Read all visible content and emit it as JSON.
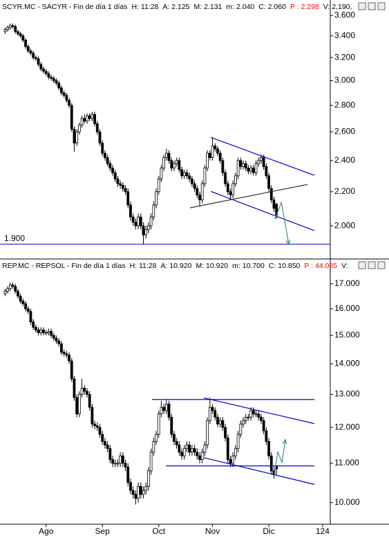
{
  "chart_data": [
    {
      "type": "candlestick",
      "title": "SCYR.MC - SACYR - Fin de día 1 días",
      "stats": [
        {
          "text": "H: 11:28"
        },
        {
          "text": "A: 2.125"
        },
        {
          "text": "M: 2.131"
        },
        {
          "text": "m: 2.040"
        },
        {
          "text": "C: 2.060"
        },
        {
          "text": "P : 2.298",
          "color": "#ff0000"
        },
        {
          "text": "V: 2,190,"
        }
      ],
      "log_scale": true,
      "up_color": "#ffffff",
      "down_color": "#000000",
      "xlim": [
        -2,
        127
      ],
      "ylim": [
        1.83,
        3.63
      ],
      "yticks": [
        {
          "value": 3.6,
          "label": "3.600"
        },
        {
          "value": 3.4,
          "label": "3.400"
        },
        {
          "value": 3.2,
          "label": "3.200"
        },
        {
          "value": 3.0,
          "label": "3.000"
        },
        {
          "value": 2.8,
          "label": "2.800"
        },
        {
          "value": 2.6,
          "label": "2.600"
        },
        {
          "value": 2.4,
          "label": "2.400"
        },
        {
          "value": 2.2,
          "label": "2.200"
        },
        {
          "value": 2.0,
          "label": "2.000"
        }
      ],
      "open": [
        3.44,
        3.46,
        3.48,
        3.5,
        3.49,
        3.44,
        3.42,
        3.4,
        3.36,
        3.3,
        3.26,
        3.24,
        3.2,
        3.19,
        3.14,
        3.1,
        3.08,
        3.06,
        3.03,
        3.02,
        3.0,
        2.98,
        2.94,
        2.9,
        2.88,
        2.84,
        2.8,
        2.62,
        2.52,
        2.6,
        2.65,
        2.7,
        2.68,
        2.72,
        2.7,
        2.73,
        2.66,
        2.6,
        2.52,
        2.45,
        2.42,
        2.38,
        2.35,
        2.32,
        2.28,
        2.25,
        2.24,
        2.22,
        2.2,
        2.12,
        2.05,
        2.02,
        2.0,
        2.05,
        2.0,
        1.95,
        1.98,
        2.0,
        2.05,
        2.12,
        2.2,
        2.28,
        2.35,
        2.42,
        2.45,
        2.4,
        2.35,
        2.38,
        2.4,
        2.34,
        2.3,
        2.32,
        2.3,
        2.28,
        2.25,
        2.22,
        2.18,
        2.15,
        2.25,
        2.35,
        2.45,
        2.42,
        2.5,
        2.48,
        2.45,
        2.4,
        2.32,
        2.25,
        2.2,
        2.18,
        2.25,
        2.3,
        2.4,
        2.36,
        2.38,
        2.35,
        2.33,
        2.35,
        2.32,
        2.38,
        2.4,
        2.42,
        2.36,
        2.3,
        2.22,
        2.15,
        2.125
      ],
      "high": [
        3.48,
        3.5,
        3.52,
        3.52,
        3.51,
        3.46,
        3.44,
        3.42,
        3.38,
        3.32,
        3.28,
        3.26,
        3.22,
        3.21,
        3.16,
        3.12,
        3.1,
        3.08,
        3.05,
        3.04,
        3.02,
        3.0,
        2.96,
        2.92,
        2.9,
        2.86,
        2.82,
        2.64,
        2.62,
        2.67,
        2.72,
        2.73,
        2.74,
        2.74,
        2.75,
        2.75,
        2.68,
        2.62,
        2.54,
        2.47,
        2.44,
        2.4,
        2.37,
        2.34,
        2.3,
        2.27,
        2.26,
        2.24,
        2.22,
        2.14,
        2.07,
        2.04,
        2.07,
        2.07,
        2.02,
        2.0,
        2.02,
        2.07,
        2.14,
        2.22,
        2.3,
        2.37,
        2.44,
        2.48,
        2.47,
        2.42,
        2.4,
        2.42,
        2.42,
        2.36,
        2.34,
        2.34,
        2.32,
        2.3,
        2.27,
        2.24,
        2.2,
        2.27,
        2.37,
        2.47,
        2.47,
        2.56,
        2.52,
        2.5,
        2.47,
        2.42,
        2.34,
        2.27,
        2.22,
        2.27,
        2.32,
        2.42,
        2.42,
        2.4,
        2.4,
        2.37,
        2.37,
        2.37,
        2.4,
        2.42,
        2.44,
        2.44,
        2.38,
        2.32,
        2.24,
        2.17,
        2.131
      ],
      "low": [
        3.42,
        3.44,
        3.46,
        3.47,
        3.42,
        3.4,
        3.38,
        3.34,
        3.28,
        3.24,
        3.22,
        3.18,
        3.17,
        3.12,
        3.08,
        3.06,
        3.04,
        3.01,
        3.0,
        2.98,
        2.96,
        2.92,
        2.88,
        2.86,
        2.82,
        2.78,
        2.6,
        2.46,
        2.5,
        2.58,
        2.63,
        2.66,
        2.66,
        2.68,
        2.68,
        2.64,
        2.58,
        2.5,
        2.43,
        2.4,
        2.36,
        2.33,
        2.3,
        2.26,
        2.23,
        2.22,
        2.2,
        2.18,
        2.1,
        2.03,
        2.0,
        1.98,
        1.98,
        1.98,
        1.9,
        1.93,
        1.96,
        1.98,
        2.03,
        2.1,
        2.18,
        2.26,
        2.33,
        2.4,
        2.38,
        2.33,
        2.33,
        2.36,
        2.32,
        2.28,
        2.28,
        2.28,
        2.26,
        2.23,
        2.2,
        2.16,
        2.11,
        2.13,
        2.23,
        2.33,
        2.4,
        2.4,
        2.46,
        2.43,
        2.38,
        2.3,
        2.23,
        2.18,
        2.15,
        2.16,
        2.23,
        2.28,
        2.34,
        2.34,
        2.33,
        2.31,
        2.31,
        2.3,
        2.3,
        2.36,
        2.38,
        2.34,
        2.28,
        2.2,
        2.13,
        2.08,
        2.04
      ],
      "close": [
        3.46,
        3.48,
        3.5,
        3.49,
        3.44,
        3.42,
        3.4,
        3.36,
        3.3,
        3.26,
        3.24,
        3.2,
        3.19,
        3.14,
        3.1,
        3.08,
        3.06,
        3.03,
        3.02,
        3.0,
        2.98,
        2.94,
        2.9,
        2.88,
        2.84,
        2.8,
        2.62,
        2.52,
        2.6,
        2.65,
        2.7,
        2.68,
        2.72,
        2.7,
        2.73,
        2.66,
        2.6,
        2.52,
        2.45,
        2.42,
        2.38,
        2.35,
        2.32,
        2.28,
        2.25,
        2.24,
        2.22,
        2.2,
        2.12,
        2.05,
        2.02,
        2.0,
        2.05,
        2.0,
        1.95,
        1.98,
        2.0,
        2.05,
        2.12,
        2.2,
        2.28,
        2.35,
        2.42,
        2.45,
        2.4,
        2.35,
        2.38,
        2.4,
        2.34,
        2.3,
        2.32,
        2.3,
        2.28,
        2.25,
        2.22,
        2.18,
        2.15,
        2.25,
        2.35,
        2.45,
        2.42,
        2.5,
        2.48,
        2.45,
        2.4,
        2.32,
        2.25,
        2.2,
        2.18,
        2.25,
        2.3,
        2.4,
        2.36,
        2.38,
        2.35,
        2.33,
        2.35,
        2.32,
        2.38,
        2.4,
        2.42,
        2.36,
        2.3,
        2.22,
        2.15,
        2.1,
        2.06
      ],
      "hlines": [
        {
          "value": 1.9,
          "label": "1.900",
          "color": "#0000cc"
        }
      ],
      "lines": [
        {
          "color": "#0000cc",
          "x": [
            80.3,
            120.8
          ],
          "y": [
            2.561,
            2.303
          ]
        },
        {
          "color": "#0000cc",
          "x": [
            80.3,
            120.8
          ],
          "y": [
            2.202,
            1.973
          ]
        },
        {
          "color": "#333333",
          "x": [
            72.2,
            118.1
          ],
          "y": [
            2.103,
            2.245
          ]
        },
        {
          "color": "#4a8a8a",
          "x": [
            105.4,
            107.9,
            110.8
          ],
          "y": [
            2.039,
            2.135,
            1.898
          ],
          "arrow": true
        }
      ]
    },
    {
      "type": "candlestick",
      "title": "REP.MC - REPSOL - Fin de día 1 días",
      "stats": [
        {
          "text": "H: 11:28"
        },
        {
          "text": "A: 10.920"
        },
        {
          "text": "M: 10.920"
        },
        {
          "text": "m: 10.700"
        },
        {
          "text": "C: 10.850"
        },
        {
          "text": "P : 44.085",
          "color": "#ff0000"
        },
        {
          "text": "V:"
        }
      ],
      "log_scale": true,
      "up_color": "#ffffff",
      "down_color": "#000000",
      "xlim": [
        -2,
        127
      ],
      "ylim": [
        9.52,
        17.4
      ],
      "xticks": [
        {
          "value": 16,
          "label": "Ago"
        },
        {
          "value": 38,
          "label": "Sep"
        },
        {
          "value": 60,
          "label": "Oct"
        },
        {
          "value": 81,
          "label": "Nov"
        },
        {
          "value": 103,
          "label": "Dic"
        },
        124
      ],
      "yticks": [
        {
          "value": 17,
          "label": "17.000"
        },
        {
          "value": 16,
          "label": "16.000"
        },
        {
          "value": 15,
          "label": "15.000"
        },
        {
          "value": 14,
          "label": "14.000"
        },
        {
          "value": 13,
          "label": "13.000"
        },
        {
          "value": 12,
          "label": "12.000"
        },
        {
          "value": 11,
          "label": "11.000"
        },
        {
          "value": 10,
          "label": "10.000"
        }
      ],
      "open": [
        16.6,
        16.7,
        16.8,
        16.95,
        16.9,
        16.7,
        16.5,
        16.3,
        16.2,
        16.0,
        15.9,
        15.5,
        15.3,
        15.2,
        15.1,
        15.2,
        15.1,
        15.1,
        15.15,
        15.0,
        14.9,
        14.8,
        14.7,
        14.4,
        14.35,
        14.3,
        14.1,
        13.5,
        12.9,
        12.4,
        13.0,
        13.2,
        13.1,
        13.0,
        12.6,
        12.1,
        12.05,
        12.0,
        11.8,
        11.6,
        11.5,
        11.4,
        11.1,
        11.0,
        11.0,
        11.0,
        11.2,
        11.0,
        10.9,
        10.5,
        10.3,
        10.2,
        10.1,
        10.4,
        10.2,
        10.3,
        10.4,
        10.8,
        11.3,
        11.6,
        11.8,
        12.4,
        12.6,
        12.5,
        12.7,
        12.3,
        11.8,
        11.6,
        11.5,
        11.3,
        11.2,
        11.4,
        11.5,
        11.3,
        11.4,
        11.3,
        11.2,
        11.1,
        11.3,
        11.5,
        12.2,
        12.6,
        12.5,
        12.3,
        12.1,
        12.2,
        12.0,
        11.7,
        11.1,
        11.0,
        11.2,
        11.4,
        11.8,
        12.1,
        12.2,
        12.3,
        12.3,
        12.5,
        12.4,
        12.4,
        12.3,
        12.2,
        11.9,
        11.6,
        11.2,
        10.8,
        10.92
      ],
      "high": [
        16.8,
        16.9,
        17.05,
        17.05,
        17.0,
        16.8,
        16.6,
        16.4,
        16.3,
        16.1,
        16.0,
        15.6,
        15.4,
        15.3,
        15.3,
        15.3,
        15.2,
        15.25,
        15.25,
        15.1,
        15.0,
        14.9,
        14.8,
        14.5,
        14.45,
        14.4,
        14.2,
        13.6,
        13.0,
        13.1,
        13.5,
        13.3,
        13.2,
        13.1,
        12.7,
        12.2,
        12.15,
        12.1,
        11.9,
        11.7,
        11.6,
        11.5,
        11.2,
        11.1,
        11.1,
        11.3,
        11.3,
        11.1,
        11.0,
        10.6,
        10.4,
        10.3,
        10.5,
        10.5,
        10.4,
        10.5,
        10.9,
        11.4,
        11.7,
        11.9,
        12.5,
        12.8,
        12.7,
        12.85,
        12.8,
        12.4,
        11.9,
        11.7,
        11.6,
        11.4,
        11.5,
        11.6,
        11.6,
        11.5,
        11.5,
        11.4,
        11.3,
        11.4,
        11.6,
        12.3,
        12.9,
        12.7,
        12.6,
        12.4,
        12.3,
        12.3,
        12.1,
        11.8,
        11.2,
        11.3,
        11.5,
        11.9,
        12.2,
        12.3,
        12.4,
        12.4,
        12.6,
        12.6,
        12.5,
        12.5,
        12.4,
        12.3,
        12.0,
        11.7,
        11.3,
        10.9,
        10.92
      ],
      "low": [
        16.5,
        16.6,
        16.7,
        16.8,
        16.6,
        16.4,
        16.2,
        16.1,
        15.9,
        15.8,
        15.4,
        15.2,
        15.1,
        15.0,
        15.0,
        15.0,
        15.0,
        15.0,
        14.9,
        14.8,
        14.7,
        14.6,
        14.3,
        14.25,
        14.2,
        14.0,
        13.4,
        12.8,
        12.3,
        12.3,
        12.9,
        13.0,
        12.9,
        12.5,
        12.0,
        11.95,
        11.9,
        11.7,
        11.5,
        11.4,
        11.3,
        11.0,
        10.9,
        10.9,
        10.9,
        10.9,
        10.9,
        10.8,
        10.4,
        10.2,
        10.1,
        9.95,
        10.0,
        10.1,
        10.1,
        10.2,
        10.3,
        10.7,
        11.2,
        11.5,
        11.7,
        12.3,
        12.4,
        12.4,
        12.2,
        11.7,
        11.5,
        11.4,
        11.2,
        11.1,
        11.1,
        11.3,
        11.2,
        11.2,
        11.2,
        11.1,
        11.0,
        11.0,
        11.2,
        11.4,
        12.1,
        12.4,
        12.2,
        12.0,
        12.0,
        11.9,
        11.6,
        11.0,
        10.9,
        10.9,
        11.1,
        11.3,
        11.7,
        12.0,
        12.1,
        12.2,
        12.2,
        12.3,
        12.3,
        12.2,
        12.1,
        11.8,
        11.5,
        11.1,
        10.7,
        10.6,
        10.7
      ],
      "close": [
        16.7,
        16.8,
        16.95,
        16.9,
        16.7,
        16.5,
        16.3,
        16.2,
        16.0,
        15.9,
        15.5,
        15.3,
        15.2,
        15.1,
        15.2,
        15.1,
        15.1,
        15.15,
        15.0,
        14.9,
        14.8,
        14.7,
        14.4,
        14.35,
        14.3,
        14.1,
        13.5,
        12.9,
        12.4,
        13.0,
        13.2,
        13.1,
        13.0,
        12.6,
        12.1,
        12.05,
        12.0,
        11.8,
        11.6,
        11.5,
        11.4,
        11.1,
        11.0,
        11.0,
        11.0,
        11.2,
        11.0,
        10.9,
        10.5,
        10.3,
        10.2,
        10.1,
        10.4,
        10.2,
        10.3,
        10.4,
        10.8,
        11.3,
        11.6,
        11.8,
        12.4,
        12.6,
        12.5,
        12.7,
        12.3,
        11.8,
        11.6,
        11.5,
        11.3,
        11.2,
        11.4,
        11.5,
        11.3,
        11.4,
        11.3,
        11.2,
        11.1,
        11.3,
        11.5,
        12.2,
        12.6,
        12.5,
        12.3,
        12.1,
        12.2,
        12.0,
        11.7,
        11.1,
        11.0,
        11.2,
        11.4,
        11.8,
        12.1,
        12.2,
        12.3,
        12.3,
        12.5,
        12.4,
        12.4,
        12.3,
        12.2,
        11.9,
        11.6,
        11.2,
        10.8,
        10.7,
        10.85
      ],
      "lines": [
        {
          "color": "#0000cc",
          "x": [
            57.4,
            120.8
          ],
          "y": [
            12.84,
            12.84
          ]
        },
        {
          "color": "#0000cc",
          "x": [
            77.6,
            120.8
          ],
          "y": [
            12.89,
            12.11
          ]
        },
        {
          "color": "#0000cc",
          "x": [
            77.6,
            120.8
          ],
          "y": [
            11.15,
            10.45
          ]
        },
        {
          "color": "#0000cc",
          "x": [
            62.8,
            120.8
          ],
          "y": [
            10.93,
            10.93
          ]
        },
        {
          "color": "#4a8a8a",
          "x": [
            105.2,
            106.5,
            108.1,
            109.5
          ],
          "y": [
            10.71,
            11.32,
            11.02,
            11.65
          ],
          "arrow": true
        }
      ]
    }
  ]
}
